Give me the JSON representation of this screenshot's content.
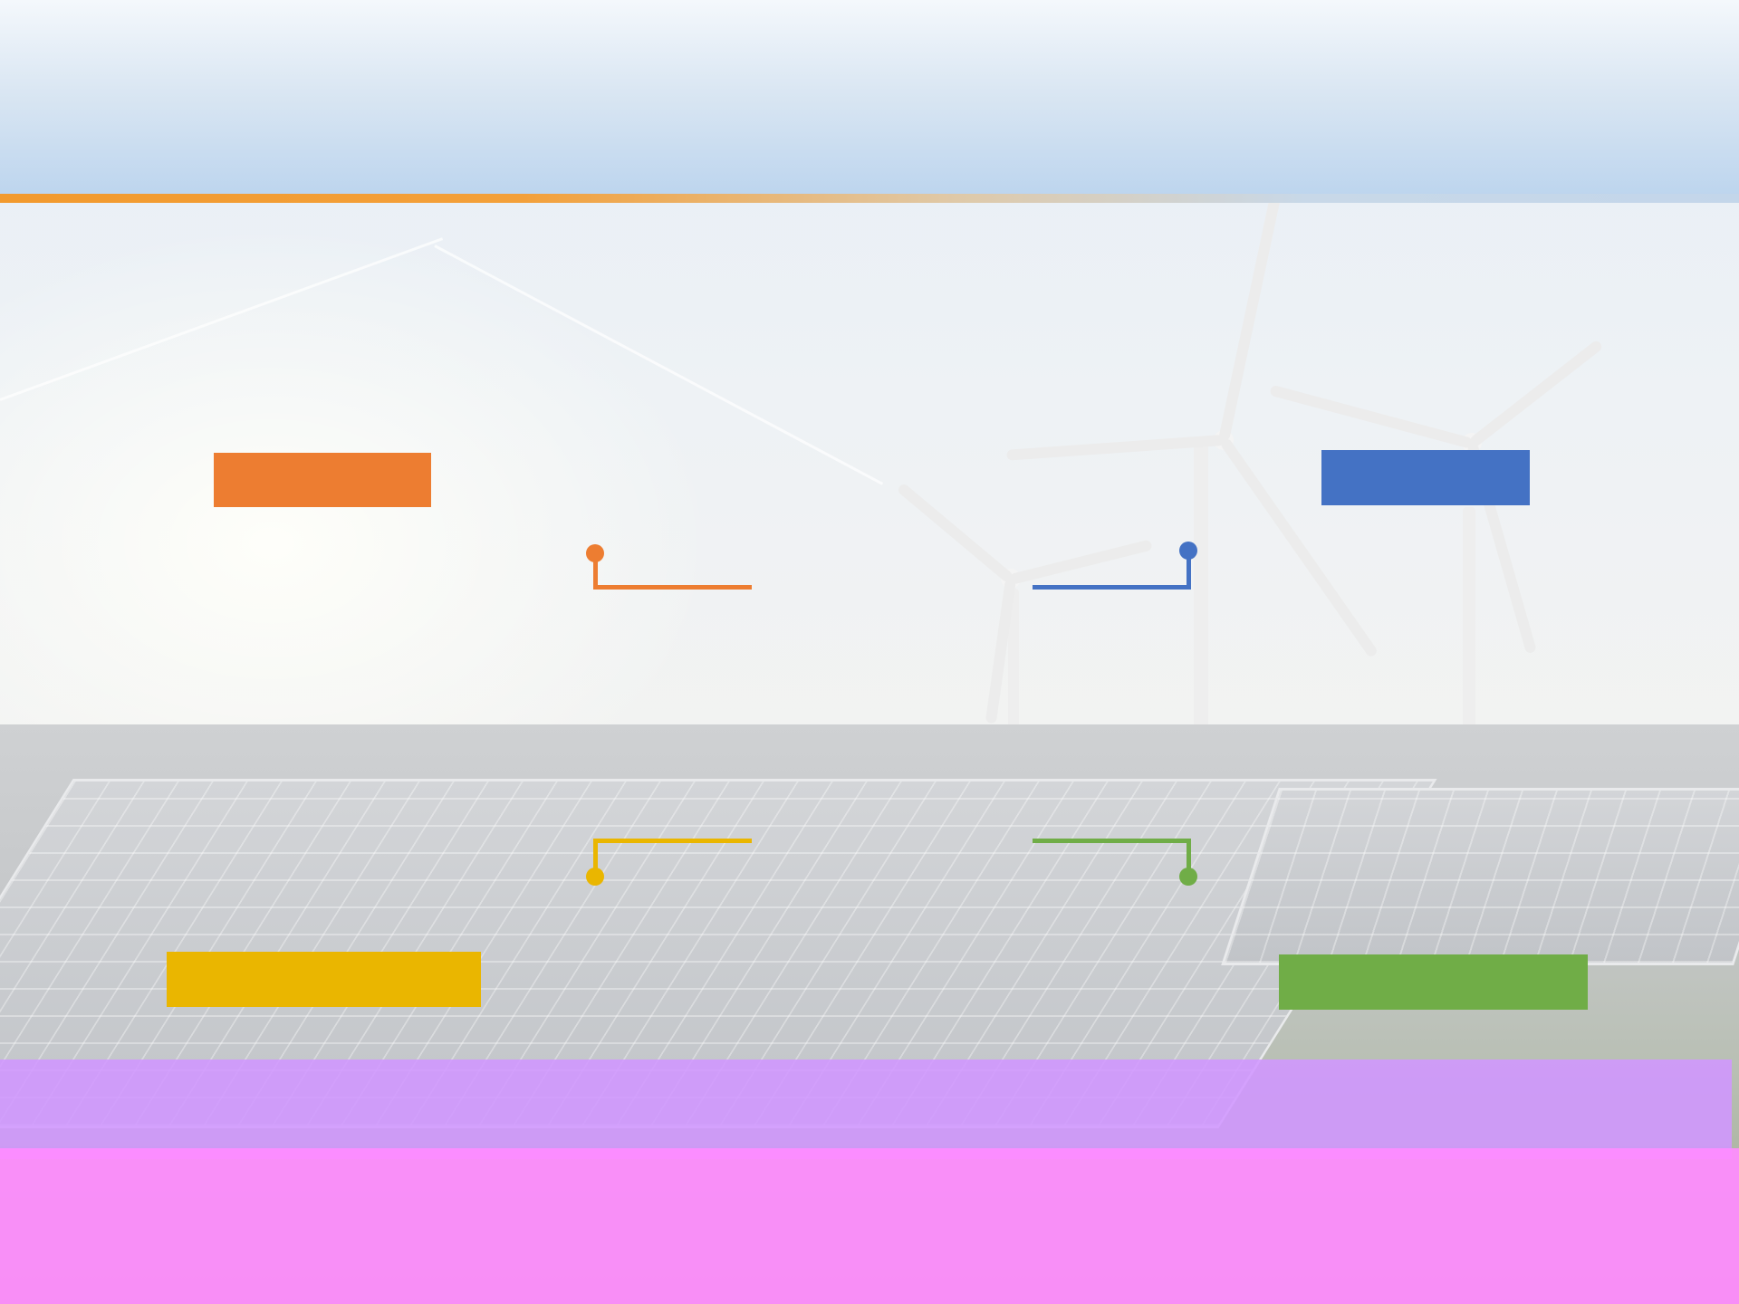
{
  "slide": {
    "title": "",
    "labels": {
      "top_left": "",
      "top_right": "",
      "bottom_left": "",
      "bottom_right": ""
    },
    "colors": {
      "orange": "#ed7d31",
      "blue": "#4472c4",
      "yellow": "#eab600",
      "green": "#70ad47",
      "header_accent": "#f29a2e",
      "overlay_violet": "#d096ff",
      "overlay_magenta": "#ff8cff"
    },
    "background": "wind-turbines-and-solar-panels-photo"
  }
}
